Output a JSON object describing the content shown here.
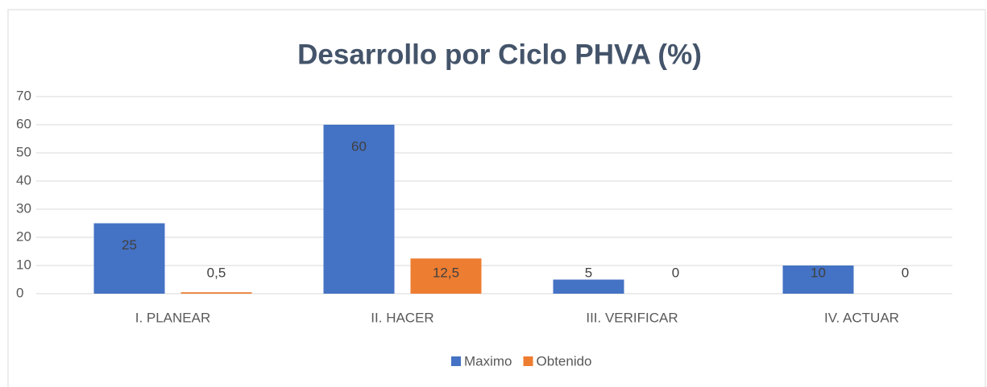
{
  "chart_data": {
    "type": "bar",
    "title": "Desarrollo por Ciclo PHVA (%)",
    "categories": [
      "I. PLANEAR",
      "II. HACER",
      "III. VERIFICAR",
      "IV. ACTUAR"
    ],
    "series": [
      {
        "name": "Maximo",
        "color": "#4472c4",
        "values": [
          25,
          60,
          5,
          10
        ]
      },
      {
        "name": "Obtenido",
        "color": "#ed7d31",
        "values": [
          0.5,
          12.5,
          0,
          0
        ],
        "value_labels": [
          "0,5",
          "12,5",
          "0",
          "0"
        ]
      }
    ],
    "ylim": [
      0,
      70
    ],
    "yticks": [
      0,
      10,
      20,
      30,
      40,
      50,
      60,
      70
    ],
    "grid": true,
    "legend": "bottom"
  }
}
